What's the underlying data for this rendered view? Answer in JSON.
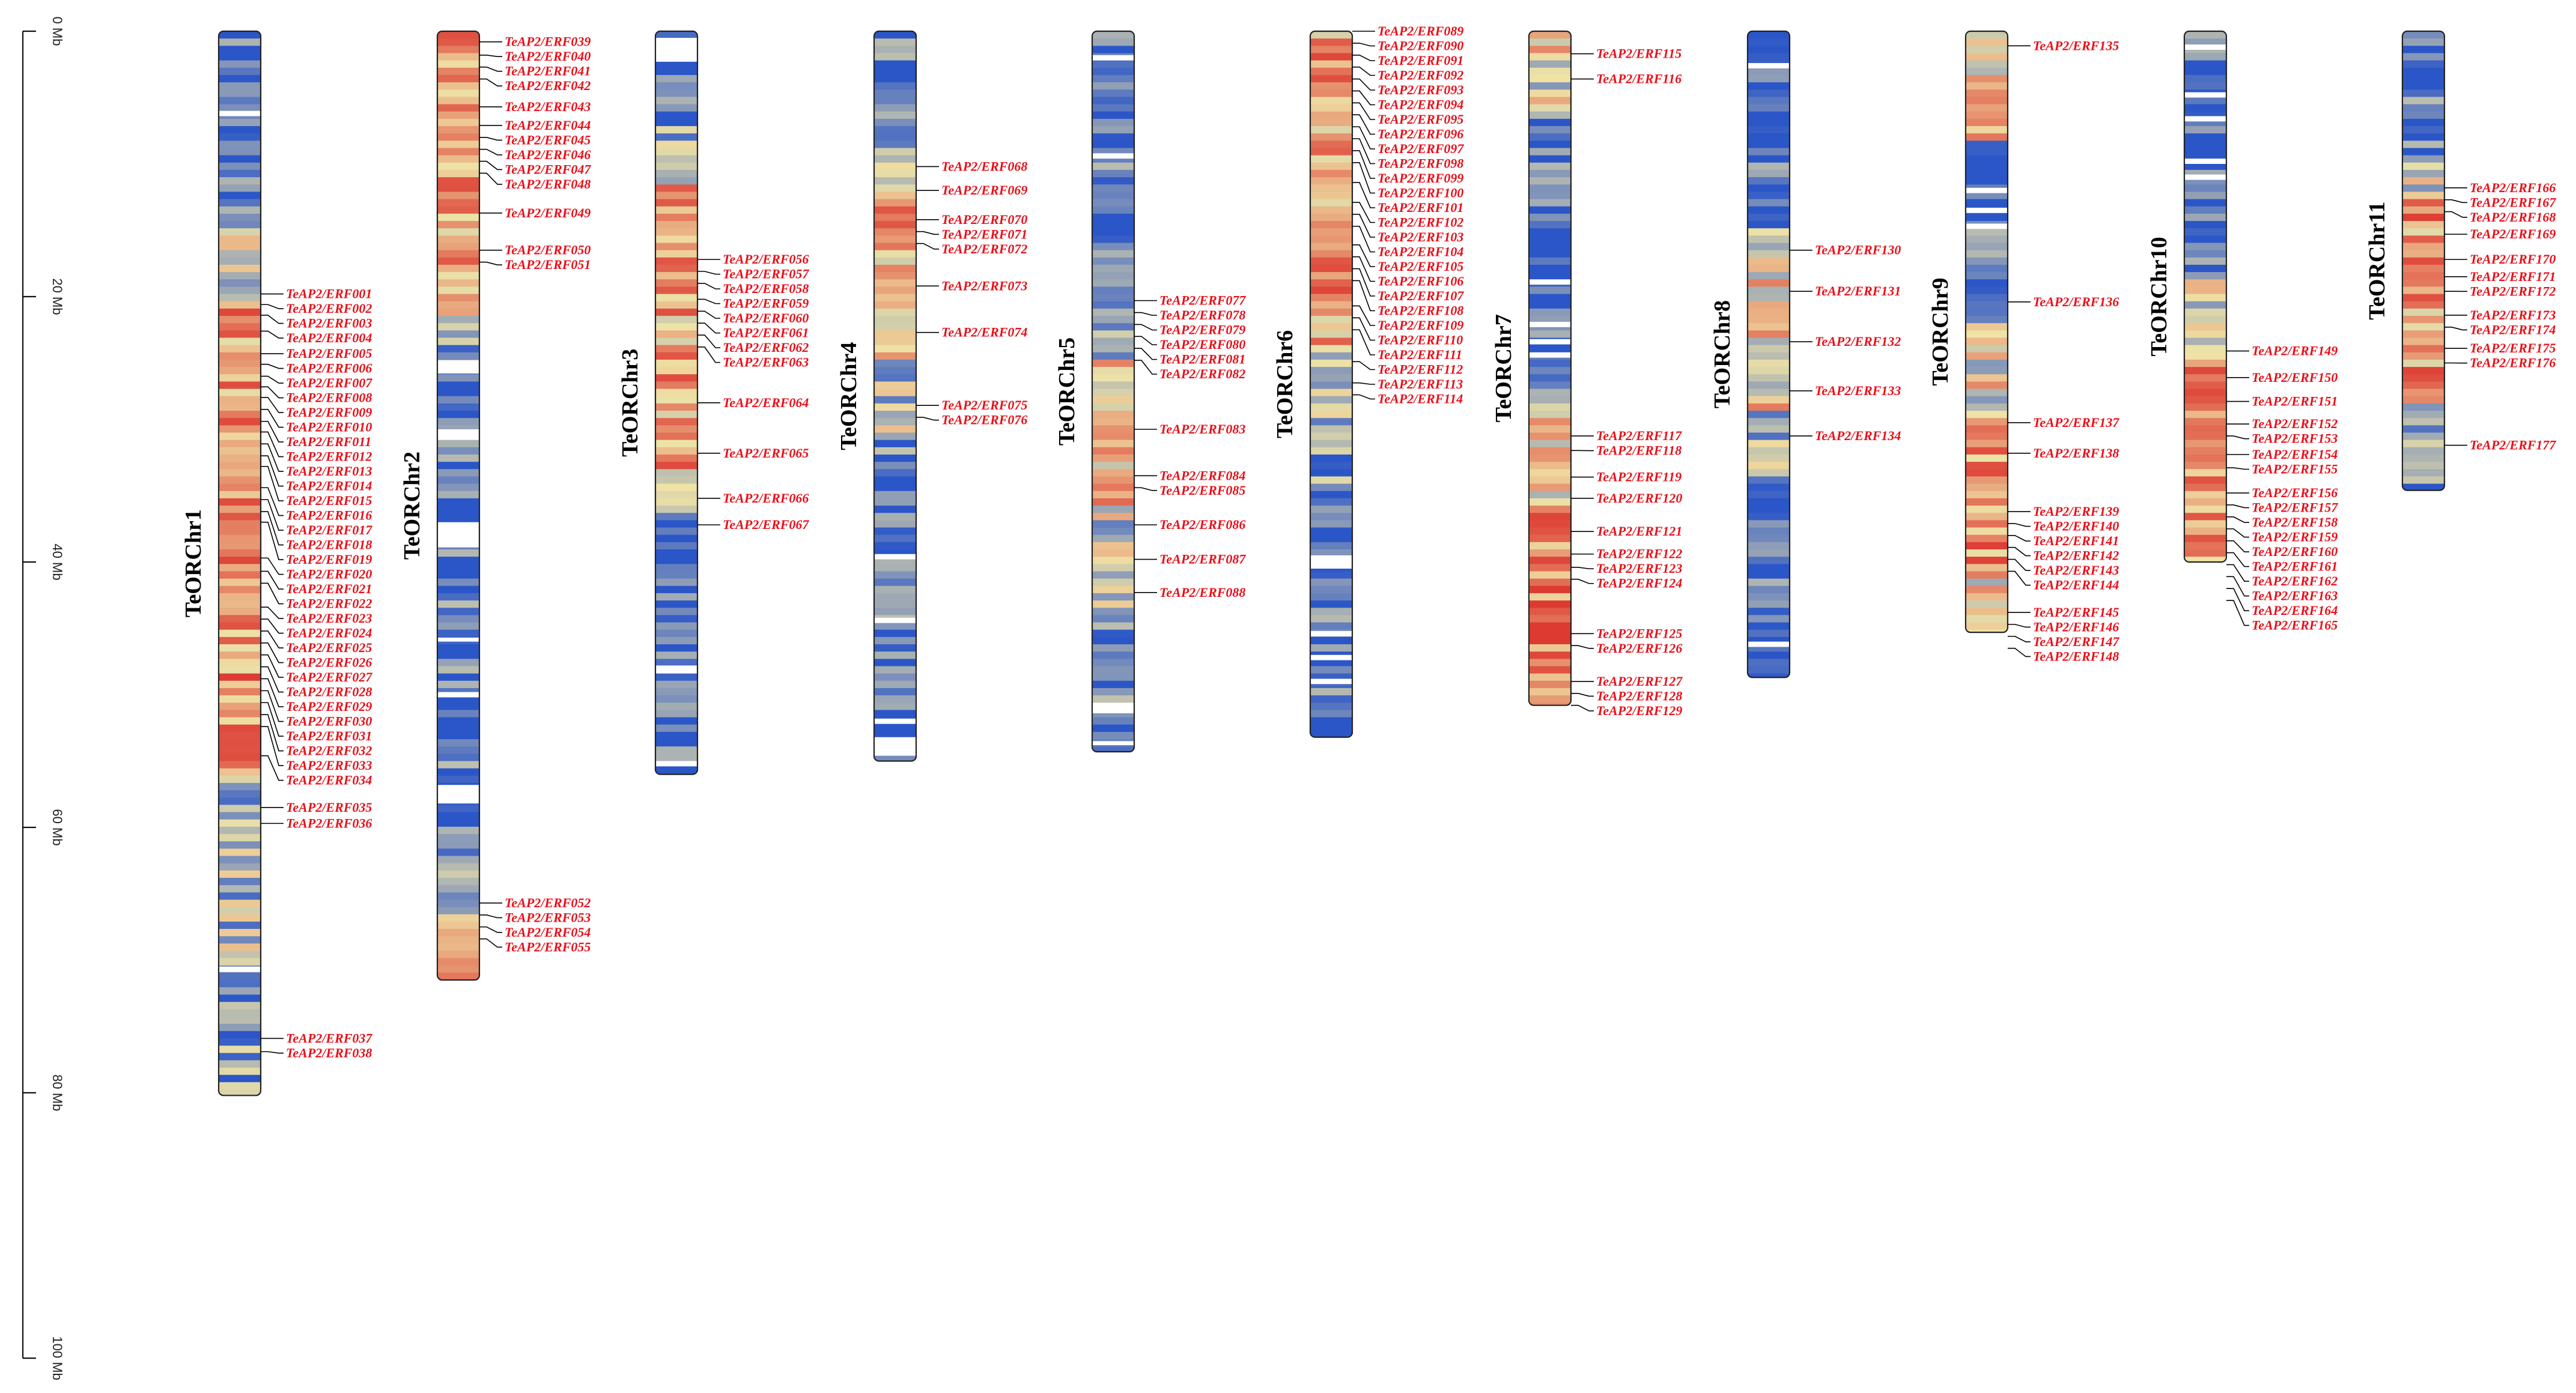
{
  "figure": {
    "type": "chromosome-gene-density-map",
    "scale": {
      "unit": "Mb",
      "max_mb": 100,
      "ticks": [
        {
          "value": 0,
          "label": "0 Mb"
        },
        {
          "value": 20,
          "label": "20 Mb"
        },
        {
          "value": 40,
          "label": "40 Mb"
        },
        {
          "value": 60,
          "label": "60 Mb"
        },
        {
          "value": 80,
          "label": "80 Mb"
        },
        {
          "value": 100,
          "label": "100 Mb"
        }
      ]
    },
    "density_colors": {
      "low": "#2b56c8",
      "mid": "#efe3a6",
      "high": "#dd3a32",
      "gap": "#ffffff"
    },
    "label_color": "#e8101a",
    "chromosomes": [
      {
        "name": "TeORChr1",
        "length_mb": 80.2,
        "profile": "mixed_middle_high",
        "gaps": [
          [
            6.0,
            6.4
          ],
          [
            70.5,
            70.9
          ]
        ],
        "genes": [
          {
            "id": "TeAP2/ERF001",
            "pos": 19.8
          },
          {
            "id": "TeAP2/ERF002",
            "pos": 20.6
          },
          {
            "id": "TeAP2/ERF003",
            "pos": 21.4
          },
          {
            "id": "TeAP2/ERF004",
            "pos": 22.6
          },
          {
            "id": "TeAP2/ERF005",
            "pos": 24.3
          },
          {
            "id": "TeAP2/ERF006",
            "pos": 25.1
          },
          {
            "id": "TeAP2/ERF007",
            "pos": 26.0
          },
          {
            "id": "TeAP2/ERF008",
            "pos": 26.8
          },
          {
            "id": "TeAP2/ERF009",
            "pos": 27.6
          },
          {
            "id": "TeAP2/ERF010",
            "pos": 28.5
          },
          {
            "id": "TeAP2/ERF011",
            "pos": 29.4
          },
          {
            "id": "TeAP2/ERF012",
            "pos": 30.2
          },
          {
            "id": "TeAP2/ERF013",
            "pos": 31.1
          },
          {
            "id": "TeAP2/ERF014",
            "pos": 32.0
          },
          {
            "id": "TeAP2/ERF015",
            "pos": 32.8
          },
          {
            "id": "TeAP2/ERF016",
            "pos": 34.4
          },
          {
            "id": "TeAP2/ERF017",
            "pos": 35.3
          },
          {
            "id": "TeAP2/ERF018",
            "pos": 36.2
          },
          {
            "id": "TeAP2/ERF019",
            "pos": 37.0
          },
          {
            "id": "TeAP2/ERF020",
            "pos": 39.7
          },
          {
            "id": "TeAP2/ERF021",
            "pos": 40.7
          },
          {
            "id": "TeAP2/ERF022",
            "pos": 41.6
          },
          {
            "id": "TeAP2/ERF023",
            "pos": 43.4
          },
          {
            "id": "TeAP2/ERF024",
            "pos": 44.3
          },
          {
            "id": "TeAP2/ERF025",
            "pos": 45.2
          },
          {
            "id": "TeAP2/ERF026",
            "pos": 46.1
          },
          {
            "id": "TeAP2/ERF027",
            "pos": 47.0
          },
          {
            "id": "TeAP2/ERF028",
            "pos": 47.9
          },
          {
            "id": "TeAP2/ERF029",
            "pos": 48.8
          },
          {
            "id": "TeAP2/ERF030",
            "pos": 49.7
          },
          {
            "id": "TeAP2/ERF031",
            "pos": 50.6
          },
          {
            "id": "TeAP2/ERF032",
            "pos": 51.5
          },
          {
            "id": "TeAP2/ERF033",
            "pos": 52.4
          },
          {
            "id": "TeAP2/ERF034",
            "pos": 54.6
          },
          {
            "id": "TeAP2/ERF035",
            "pos": 58.5
          },
          {
            "id": "TeAP2/ERF036",
            "pos": 59.7
          },
          {
            "id": "TeAP2/ERF037",
            "pos": 75.9
          },
          {
            "id": "TeAP2/ERF038",
            "pos": 76.9
          }
        ]
      },
      {
        "name": "TeORChr2",
        "length_mb": 71.5,
        "profile": "top_warm_bottom_blue",
        "gaps": [
          [
            24.8,
            25.8
          ],
          [
            30.0,
            30.8
          ],
          [
            37.0,
            38.9
          ],
          [
            45.7,
            46.0
          ],
          [
            49.8,
            50.2
          ],
          [
            56.8,
            58.2
          ]
        ],
        "genes": [
          {
            "id": "TeAP2/ERF039",
            "pos": 0.8
          },
          {
            "id": "TeAP2/ERF040",
            "pos": 1.8
          },
          {
            "id": "TeAP2/ERF041",
            "pos": 2.7
          },
          {
            "id": "TeAP2/ERF042",
            "pos": 3.6
          },
          {
            "id": "TeAP2/ERF043",
            "pos": 5.7
          },
          {
            "id": "TeAP2/ERF044",
            "pos": 7.1
          },
          {
            "id": "TeAP2/ERF045",
            "pos": 8.0
          },
          {
            "id": "TeAP2/ERF046",
            "pos": 8.9
          },
          {
            "id": "TeAP2/ERF047",
            "pos": 9.8
          },
          {
            "id": "TeAP2/ERF048",
            "pos": 10.7
          },
          {
            "id": "TeAP2/ERF049",
            "pos": 13.7
          },
          {
            "id": "TeAP2/ERF050",
            "pos": 16.5
          },
          {
            "id": "TeAP2/ERF051",
            "pos": 17.4
          },
          {
            "id": "TeAP2/ERF052",
            "pos": 65.7
          },
          {
            "id": "TeAP2/ERF053",
            "pos": 66.6
          },
          {
            "id": "TeAP2/ERF054",
            "pos": 67.5
          },
          {
            "id": "TeAP2/ERF055",
            "pos": 68.4
          }
        ]
      },
      {
        "name": "TeORChr3",
        "length_mb": 56.0,
        "profile": "upper_warm_lower_blue",
        "gaps": [
          [
            0.5,
            2.3
          ],
          [
            47.8,
            48.4
          ],
          [
            55.0,
            55.4
          ]
        ],
        "genes": [
          {
            "id": "TeAP2/ERF056",
            "pos": 17.2
          },
          {
            "id": "TeAP2/ERF057",
            "pos": 18.1
          },
          {
            "id": "TeAP2/ERF058",
            "pos": 19.0
          },
          {
            "id": "TeAP2/ERF059",
            "pos": 20.2
          },
          {
            "id": "TeAP2/ERF060",
            "pos": 21.1
          },
          {
            "id": "TeAP2/ERF061",
            "pos": 22.0
          },
          {
            "id": "TeAP2/ERF062",
            "pos": 22.9
          },
          {
            "id": "TeAP2/ERF063",
            "pos": 23.8
          },
          {
            "id": "TeAP2/ERF064",
            "pos": 28.0
          },
          {
            "id": "TeAP2/ERF065",
            "pos": 31.8
          },
          {
            "id": "TeAP2/ERF066",
            "pos": 35.2
          },
          {
            "id": "TeAP2/ERF067",
            "pos": 37.2
          }
        ]
      },
      {
        "name": "TeORChr4",
        "length_mb": 55.0,
        "profile": "upper_mixed_lower_blue",
        "gaps": [
          [
            39.4,
            39.8
          ],
          [
            44.2,
            44.6
          ],
          [
            51.8,
            52.2
          ],
          [
            53.2,
            54.6
          ]
        ],
        "genes": [
          {
            "id": "TeAP2/ERF068",
            "pos": 10.2
          },
          {
            "id": "TeAP2/ERF069",
            "pos": 12.0
          },
          {
            "id": "TeAP2/ERF070",
            "pos": 14.2
          },
          {
            "id": "TeAP2/ERF071",
            "pos": 15.1
          },
          {
            "id": "TeAP2/ERF072",
            "pos": 16.0
          },
          {
            "id": "TeAP2/ERF073",
            "pos": 19.2
          },
          {
            "id": "TeAP2/ERF074",
            "pos": 22.7
          },
          {
            "id": "TeAP2/ERF075",
            "pos": 28.2
          },
          {
            "id": "TeAP2/ERF076",
            "pos": 29.1
          }
        ]
      },
      {
        "name": "TeORChr5",
        "length_mb": 54.3,
        "profile": "mid_warm_ends_blue",
        "gaps": [
          [
            1.8,
            2.2
          ],
          [
            9.2,
            9.6
          ],
          [
            50.6,
            51.4
          ],
          [
            53.5,
            53.8
          ]
        ],
        "genes": [
          {
            "id": "TeAP2/ERF077",
            "pos": 20.3
          },
          {
            "id": "TeAP2/ERF078",
            "pos": 21.2
          },
          {
            "id": "TeAP2/ERF079",
            "pos": 22.1
          },
          {
            "id": "TeAP2/ERF080",
            "pos": 23.0
          },
          {
            "id": "TeAP2/ERF081",
            "pos": 23.9
          },
          {
            "id": "TeAP2/ERF082",
            "pos": 24.8
          },
          {
            "id": "TeAP2/ERF083",
            "pos": 30.0
          },
          {
            "id": "TeAP2/ERF084",
            "pos": 33.5
          },
          {
            "id": "TeAP2/ERF085",
            "pos": 34.4
          },
          {
            "id": "TeAP2/ERF086",
            "pos": 37.2
          },
          {
            "id": "TeAP2/ERF087",
            "pos": 39.8
          },
          {
            "id": "TeAP2/ERF088",
            "pos": 42.3
          }
        ]
      },
      {
        "name": "TeORChr6",
        "length_mb": 53.2,
        "profile": "top_warm_bottom_blue2",
        "gaps": [
          [
            39.5,
            40.5
          ],
          [
            45.2,
            45.6
          ],
          [
            47.0,
            47.4
          ],
          [
            48.8,
            49.2
          ]
        ],
        "genes": [
          {
            "id": "TeAP2/ERF089",
            "pos": 0.0
          },
          {
            "id": "TeAP2/ERF090",
            "pos": 0.9
          },
          {
            "id": "TeAP2/ERF091",
            "pos": 1.8
          },
          {
            "id": "TeAP2/ERF092",
            "pos": 2.7
          },
          {
            "id": "TeAP2/ERF093",
            "pos": 3.6
          },
          {
            "id": "TeAP2/ERF094",
            "pos": 4.5
          },
          {
            "id": "TeAP2/ERF095",
            "pos": 5.4
          },
          {
            "id": "TeAP2/ERF096",
            "pos": 6.3
          },
          {
            "id": "TeAP2/ERF097",
            "pos": 7.2
          },
          {
            "id": "TeAP2/ERF098",
            "pos": 8.1
          },
          {
            "id": "TeAP2/ERF099",
            "pos": 9.0
          },
          {
            "id": "TeAP2/ERF100",
            "pos": 9.9
          },
          {
            "id": "TeAP2/ERF101",
            "pos": 11.4
          },
          {
            "id": "TeAP2/ERF102",
            "pos": 12.9
          },
          {
            "id": "TeAP2/ERF103",
            "pos": 13.8
          },
          {
            "id": "TeAP2/ERF104",
            "pos": 14.7
          },
          {
            "id": "TeAP2/ERF105",
            "pos": 16.1
          },
          {
            "id": "TeAP2/ERF106",
            "pos": 17.0
          },
          {
            "id": "TeAP2/ERF107",
            "pos": 17.9
          },
          {
            "id": "TeAP2/ERF108",
            "pos": 18.8
          },
          {
            "id": "TeAP2/ERF109",
            "pos": 20.7
          },
          {
            "id": "TeAP2/ERF110",
            "pos": 21.6
          },
          {
            "id": "TeAP2/ERF111",
            "pos": 22.5
          },
          {
            "id": "TeAP2/ERF112",
            "pos": 24.9
          },
          {
            "id": "TeAP2/ERF113",
            "pos": 26.5
          },
          {
            "id": "TeAP2/ERF114",
            "pos": 27.4
          }
        ]
      },
      {
        "name": "TeORChr7",
        "length_mb": 50.8,
        "profile": "top_yellow_mid_blue_bottom_red",
        "gaps": [
          [
            18.7,
            19.1
          ],
          [
            21.9,
            22.3
          ],
          [
            23.2,
            23.6
          ],
          [
            24.2,
            24.6
          ]
        ],
        "genes": [
          {
            "id": "TeAP2/ERF115",
            "pos": 1.7
          },
          {
            "id": "TeAP2/ERF116",
            "pos": 3.6
          },
          {
            "id": "TeAP2/ERF117",
            "pos": 30.5
          },
          {
            "id": "TeAP2/ERF118",
            "pos": 31.6
          },
          {
            "id": "TeAP2/ERF119",
            "pos": 33.6
          },
          {
            "id": "TeAP2/ERF120",
            "pos": 35.2
          },
          {
            "id": "TeAP2/ERF121",
            "pos": 37.7
          },
          {
            "id": "TeAP2/ERF122",
            "pos": 39.4
          },
          {
            "id": "TeAP2/ERF123",
            "pos": 40.4
          },
          {
            "id": "TeAP2/ERF124",
            "pos": 41.3
          },
          {
            "id": "TeAP2/ERF125",
            "pos": 45.4
          },
          {
            "id": "TeAP2/ERF126",
            "pos": 46.3
          },
          {
            "id": "TeAP2/ERF127",
            "pos": 49.0
          },
          {
            "id": "TeAP2/ERF128",
            "pos": 49.9
          },
          {
            "id": "TeAP2/ERF129",
            "pos": 50.8
          }
        ]
      },
      {
        "name": "TeORChr8",
        "length_mb": 48.7,
        "profile": "blue_with_mid_warm",
        "gaps": [
          [
            2.4,
            2.8
          ],
          [
            46.0,
            46.4
          ]
        ],
        "genes": [
          {
            "id": "TeAP2/ERF130",
            "pos": 16.5
          },
          {
            "id": "TeAP2/ERF131",
            "pos": 19.6
          },
          {
            "id": "TeAP2/ERF132",
            "pos": 23.4
          },
          {
            "id": "TeAP2/ERF133",
            "pos": 27.1
          },
          {
            "id": "TeAP2/ERF134",
            "pos": 30.5
          }
        ]
      },
      {
        "name": "TeORChr9",
        "length_mb": 45.3,
        "profile": "warm_blue_warm",
        "gaps": [
          [
            11.8,
            12.2
          ],
          [
            13.3,
            13.7
          ],
          [
            14.5,
            14.9
          ]
        ],
        "genes": [
          {
            "id": "TeAP2/ERF135",
            "pos": 1.1
          },
          {
            "id": "TeAP2/ERF136",
            "pos": 20.4
          },
          {
            "id": "TeAP2/ERF137",
            "pos": 29.5
          },
          {
            "id": "TeAP2/ERF138",
            "pos": 31.8
          },
          {
            "id": "TeAP2/ERF139",
            "pos": 36.2
          },
          {
            "id": "TeAP2/ERF140",
            "pos": 37.1
          },
          {
            "id": "TeAP2/ERF141",
            "pos": 38.0
          },
          {
            "id": "TeAP2/ERF142",
            "pos": 38.9
          },
          {
            "id": "TeAP2/ERF143",
            "pos": 39.8
          },
          {
            "id": "TeAP2/ERF144",
            "pos": 40.7
          },
          {
            "id": "TeAP2/ERF145",
            "pos": 43.8
          },
          {
            "id": "TeAP2/ERF146",
            "pos": 44.7
          },
          {
            "id": "TeAP2/ERF147",
            "pos": 45.6
          },
          {
            "id": "TeAP2/ERF148",
            "pos": 46.5
          }
        ]
      },
      {
        "name": "TeORChr10",
        "length_mb": 40.0,
        "profile": "top_blue_bottom_warm",
        "gaps": [
          [
            1.0,
            1.4
          ],
          [
            4.6,
            5.0
          ],
          [
            6.4,
            6.8
          ],
          [
            9.6,
            10.0
          ],
          [
            10.8,
            11.2
          ]
        ],
        "genes": [
          {
            "id": "TeAP2/ERF149",
            "pos": 24.1
          },
          {
            "id": "TeAP2/ERF150",
            "pos": 26.1
          },
          {
            "id": "TeAP2/ERF151",
            "pos": 27.9
          },
          {
            "id": "TeAP2/ERF152",
            "pos": 29.6
          },
          {
            "id": "TeAP2/ERF153",
            "pos": 30.5
          },
          {
            "id": "TeAP2/ERF154",
            "pos": 31.9
          },
          {
            "id": "TeAP2/ERF155",
            "pos": 32.9
          },
          {
            "id": "TeAP2/ERF156",
            "pos": 34.8
          },
          {
            "id": "TeAP2/ERF157",
            "pos": 35.7
          },
          {
            "id": "TeAP2/ERF158",
            "pos": 36.6
          },
          {
            "id": "TeAP2/ERF159",
            "pos": 37.5
          },
          {
            "id": "TeAP2/ERF160",
            "pos": 38.4
          },
          {
            "id": "TeAP2/ERF161",
            "pos": 39.3
          },
          {
            "id": "TeAP2/ERF162",
            "pos": 40.2
          },
          {
            "id": "TeAP2/ERF163",
            "pos": 41.1
          },
          {
            "id": "TeAP2/ERF164",
            "pos": 42.0
          },
          {
            "id": "TeAP2/ERF165",
            "pos": 42.9
          }
        ]
      },
      {
        "name": "TeORChr11",
        "length_mb": 34.6,
        "profile": "top_blue_mid_warm_bottom_blue",
        "gaps": [],
        "genes": [
          {
            "id": "TeAP2/ERF166",
            "pos": 11.8
          },
          {
            "id": "TeAP2/ERF167",
            "pos": 12.7
          },
          {
            "id": "TeAP2/ERF168",
            "pos": 13.6
          },
          {
            "id": "TeAP2/ERF169",
            "pos": 15.3
          },
          {
            "id": "TeAP2/ERF170",
            "pos": 17.2
          },
          {
            "id": "TeAP2/ERF171",
            "pos": 18.5
          },
          {
            "id": "TeAP2/ERF172",
            "pos": 19.6
          },
          {
            "id": "TeAP2/ERF173",
            "pos": 21.4
          },
          {
            "id": "TeAP2/ERF174",
            "pos": 22.3
          },
          {
            "id": "TeAP2/ERF175",
            "pos": 23.9
          },
          {
            "id": "TeAP2/ERF176",
            "pos": 25.0
          },
          {
            "id": "TeAP2/ERF177",
            "pos": 31.2
          }
        ]
      }
    ]
  }
}
